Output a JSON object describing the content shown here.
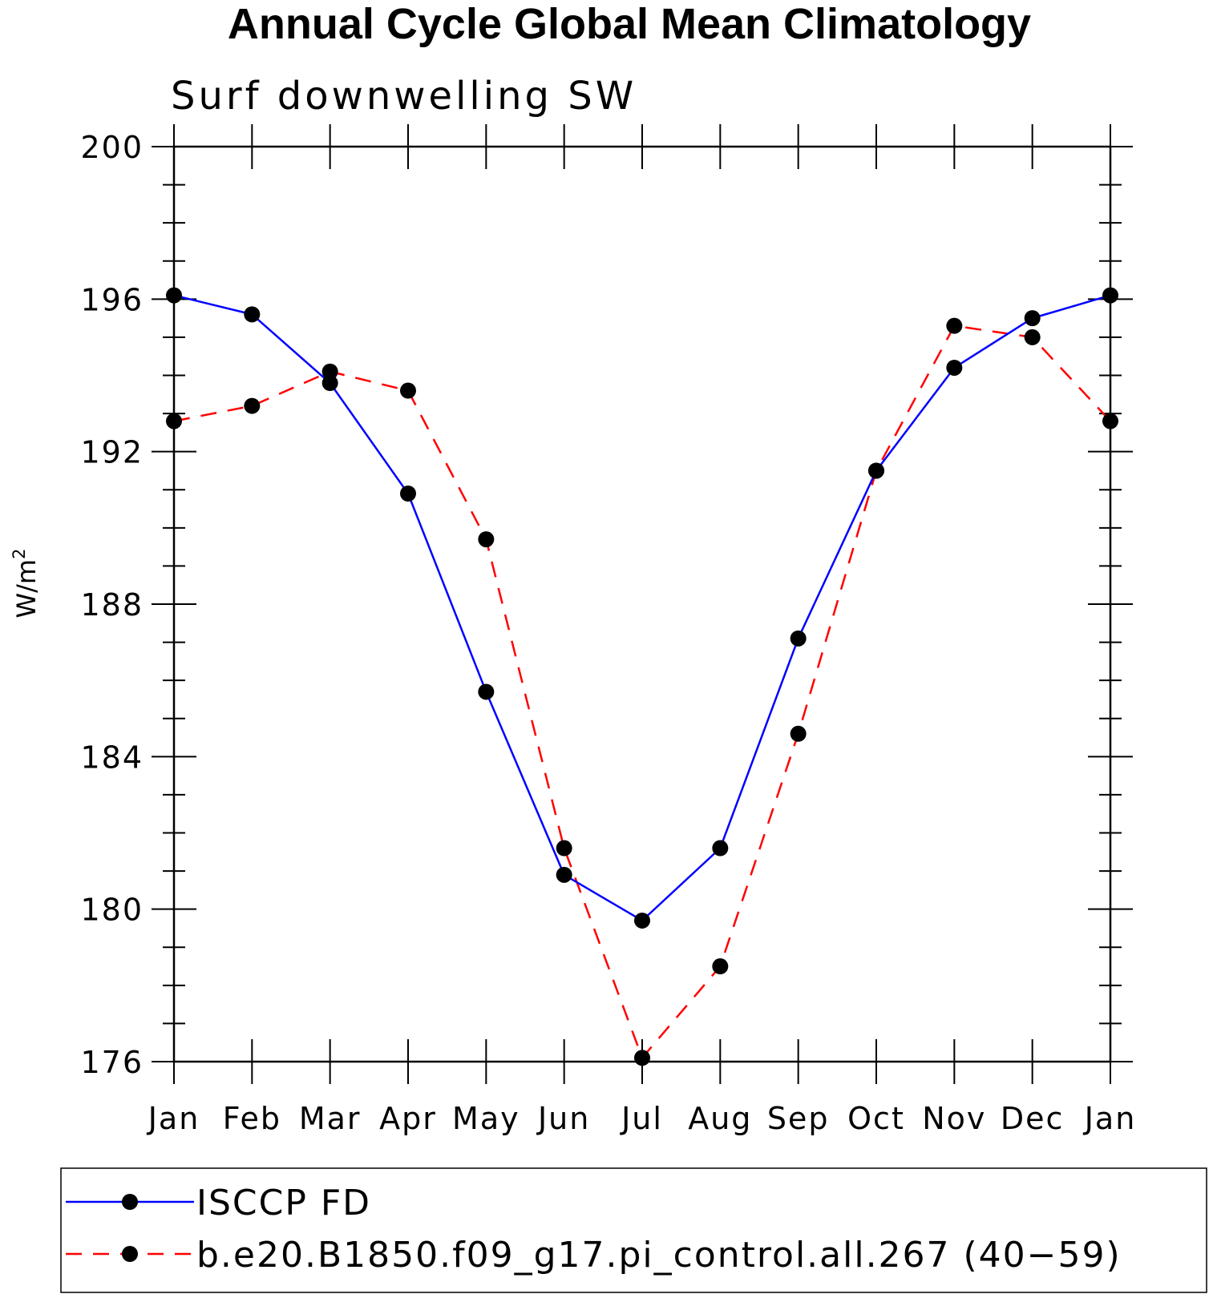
{
  "chart_data": {
    "type": "line",
    "title": "Annual Cycle Global Mean Climatology",
    "subtitle": "Surf downwelling SW",
    "ylabel_base": "W/m",
    "ylabel_sup": "2",
    "categories": [
      "Jan",
      "Feb",
      "Mar",
      "Apr",
      "May",
      "Jun",
      "Jul",
      "Aug",
      "Sep",
      "Oct",
      "Nov",
      "Dec",
      "Jan"
    ],
    "ylim": [
      176,
      200
    ],
    "yticks": [
      176,
      180,
      184,
      188,
      192,
      196,
      200
    ],
    "ytick_labels": [
      "176",
      "180",
      "184",
      "188",
      "192",
      "196",
      "200"
    ],
    "grid": false,
    "legend_position": "bottom",
    "series": [
      {
        "name": "ISCCP FD",
        "color": "#0000ff",
        "style": "solid",
        "marker": "circle",
        "values": [
          196.1,
          195.6,
          193.8,
          190.9,
          185.7,
          180.9,
          179.7,
          181.6,
          187.1,
          191.5,
          194.2,
          195.5,
          196.1
        ]
      },
      {
        "name": "b.e20.B1850.f09_g17.pi_control.all.267 (40−59)",
        "color": "#ff0000",
        "style": "dashed",
        "marker": "circle",
        "values": [
          192.8,
          193.2,
          194.1,
          193.6,
          189.7,
          181.6,
          176.1,
          178.5,
          184.6,
          191.5,
          195.3,
          195.0,
          192.8
        ]
      }
    ]
  }
}
